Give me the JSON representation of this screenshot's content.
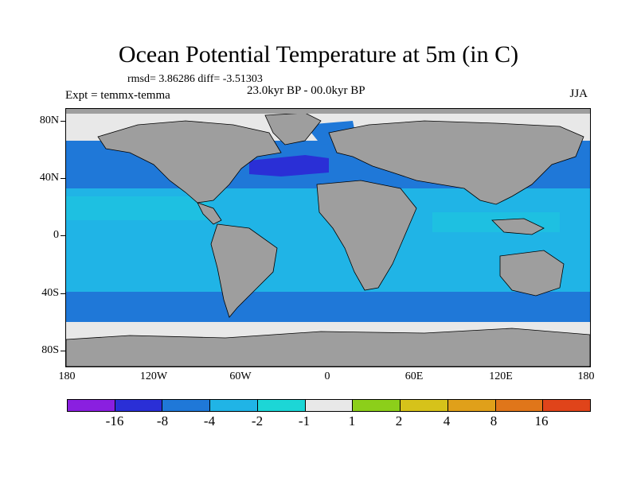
{
  "header": {
    "title": "Ocean Potential Temperature at 5m (in C)",
    "stats": "rmsd= 3.86286 diff= -3.51303",
    "experiment": "Expt = temmx-temma",
    "period": "23.0kyr BP - 00.0kyr BP",
    "season": "JJA"
  },
  "axes": {
    "lat_labels": [
      "80N",
      "40N",
      "0",
      "40S",
      "80S"
    ],
    "lon_labels": [
      "180",
      "120W",
      "60W",
      "0",
      "60E",
      "120E",
      "180"
    ]
  },
  "colorbar": {
    "colors": [
      "#8a1fe0",
      "#2a2fd6",
      "#1f78d8",
      "#20b4e6",
      "#1cd6d6",
      "#e8e8e8",
      "#8ccf1a",
      "#d6c21a",
      "#e0a01a",
      "#e0761a",
      "#e0441a"
    ],
    "labels": [
      "-16",
      "-8",
      "-4",
      "-2",
      "-1",
      "1",
      "2",
      "4",
      "8",
      "16"
    ]
  },
  "map_colors": {
    "land": "#9e9e9e",
    "ocean_base": "#20b4e6",
    "cool_mid": "#1f78d8",
    "cool_strong": "#2a2fd6",
    "near_zero": "#e8e8e8",
    "slight": "#1cd6d6"
  }
}
